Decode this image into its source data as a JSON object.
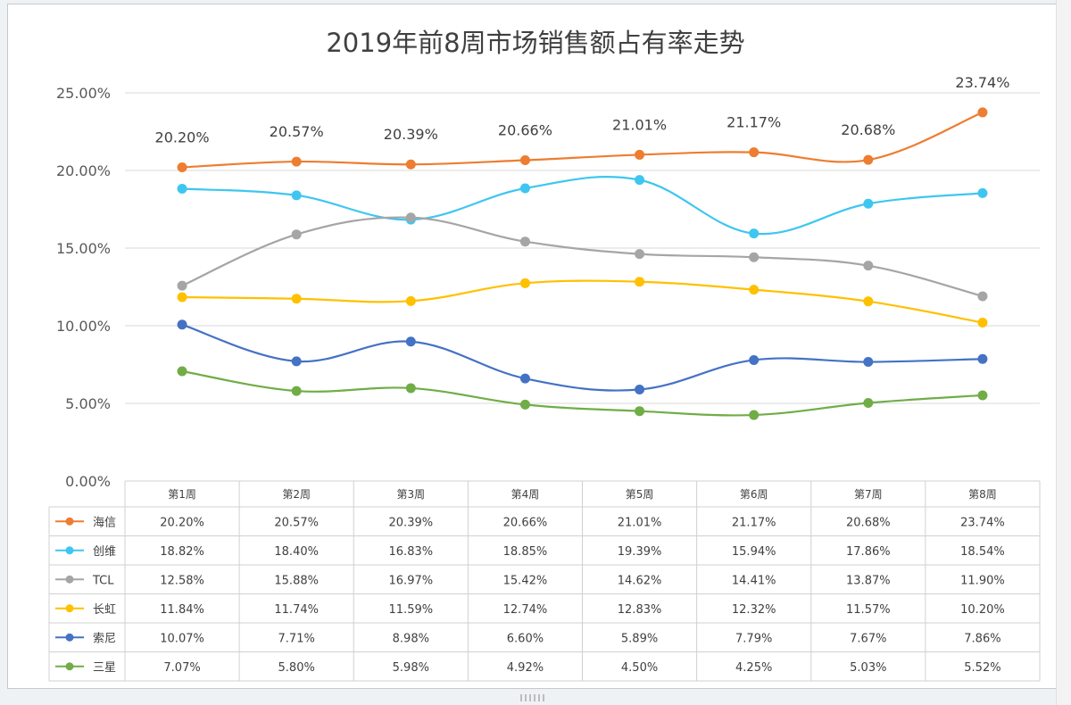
{
  "chart_data": {
    "type": "line",
    "title": "2019年前8周市场销售额占有率走势",
    "categories": [
      "第1周",
      "第2周",
      "第3周",
      "第4周",
      "第5周",
      "第6周",
      "第7周",
      "第8周"
    ],
    "y_ticks": [
      "25.00%",
      "20.00%",
      "15.00%",
      "10.00%",
      "5.00%",
      "0.00%"
    ],
    "ylim": [
      0,
      25
    ],
    "grid": true,
    "legend": "data-table-below",
    "series": [
      {
        "name": "海信",
        "color": "#ed7d31",
        "values": [
          20.2,
          20.57,
          20.39,
          20.66,
          21.01,
          21.17,
          20.68,
          23.74
        ],
        "table": [
          "20.20%",
          "20.57%",
          "20.39%",
          "20.66%",
          "21.01%",
          "21.17%",
          "20.68%",
          "23.74%"
        ]
      },
      {
        "name": "创维",
        "color": "#3ec6f0",
        "values": [
          18.82,
          18.4,
          16.83,
          18.85,
          19.39,
          15.94,
          17.86,
          18.54
        ],
        "table": [
          "18.82%",
          "18.40%",
          "16.83%",
          "18.85%",
          "19.39%",
          "15.94%",
          "17.86%",
          "18.54%"
        ]
      },
      {
        "name": "TCL",
        "color": "#a5a5a5",
        "values": [
          12.58,
          15.88,
          16.97,
          15.42,
          14.62,
          14.41,
          13.87,
          11.9
        ],
        "table": [
          "12.58%",
          "15.88%",
          "16.97%",
          "15.42%",
          "14.62%",
          "14.41%",
          "13.87%",
          "11.90%"
        ]
      },
      {
        "name": "长虹",
        "color": "#ffc000",
        "values": [
          11.84,
          11.74,
          11.59,
          12.74,
          12.83,
          12.32,
          11.57,
          10.2
        ],
        "table": [
          "11.84%",
          "11.74%",
          "11.59%",
          "12.74%",
          "12.83%",
          "12.32%",
          "11.57%",
          "10.20%"
        ]
      },
      {
        "name": "索尼",
        "color": "#4472c4",
        "values": [
          10.07,
          7.71,
          8.98,
          6.6,
          5.89,
          7.79,
          7.67,
          7.86
        ],
        "table": [
          "10.07%",
          "7.71%",
          "8.98%",
          "6.60%",
          "5.89%",
          "7.79%",
          "7.67%",
          "7.86%"
        ]
      },
      {
        "name": "三星",
        "color": "#70ad47",
        "values": [
          7.07,
          5.8,
          5.98,
          4.92,
          4.5,
          4.25,
          5.03,
          5.52
        ],
        "table": [
          "7.07%",
          "5.80%",
          "5.98%",
          "4.92%",
          "4.50%",
          "4.25%",
          "5.03%",
          "5.52%"
        ]
      }
    ]
  }
}
